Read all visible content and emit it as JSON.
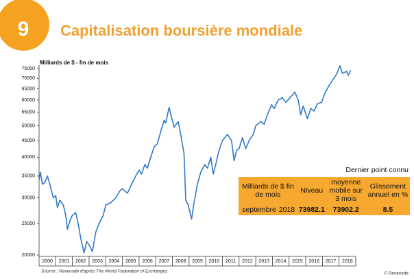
{
  "badge": "9",
  "chart_data": {
    "type": "line",
    "title": "Capitalisation boursière mondiale",
    "y_label": "Milliards de $ - fin de mois",
    "log_y": true,
    "color": "#2e78c8",
    "x": [
      2000.0,
      2000.08,
      2000.2,
      2000.35,
      2000.5,
      2000.65,
      2000.85,
      2001.0,
      2001.1,
      2001.25,
      2001.45,
      2001.6,
      2001.7,
      2001.85,
      2002.0,
      2002.2,
      2002.35,
      2002.5,
      2002.7,
      2002.85,
      2003.0,
      2003.2,
      2003.4,
      2003.6,
      2003.85,
      2004.0,
      2004.3,
      2004.6,
      2004.85,
      2005.0,
      2005.3,
      2005.55,
      2005.8,
      2006.0,
      2006.15,
      2006.35,
      2006.5,
      2006.7,
      2006.9,
      2007.1,
      2007.3,
      2007.5,
      2007.6,
      2007.8,
      2007.95,
      2008.1,
      2008.35,
      2008.5,
      2008.7,
      2008.8,
      2008.95,
      2009.15,
      2009.3,
      2009.5,
      2009.7,
      2009.95,
      2010.1,
      2010.3,
      2010.45,
      2010.6,
      2010.8,
      2011.0,
      2011.3,
      2011.55,
      2011.7,
      2011.85,
      2012.0,
      2012.2,
      2012.4,
      2012.6,
      2012.85,
      2013.0,
      2013.3,
      2013.5,
      2013.7,
      2013.95,
      2014.1,
      2014.35,
      2014.6,
      2014.8,
      2015.0,
      2015.35,
      2015.55,
      2015.7,
      2015.85,
      2016.1,
      2016.3,
      2016.5,
      2016.7,
      2016.95,
      2017.15,
      2017.4,
      2017.6,
      2017.85,
      2018.05,
      2018.2,
      2018.45,
      2018.55,
      2018.7
    ],
    "values": [
      34000,
      36000,
      33000,
      33500,
      35000,
      33000,
      30000,
      30500,
      28000,
      29500,
      28500,
      26500,
      24000,
      25500,
      26500,
      27000,
      25000,
      22500,
      20300,
      22000,
      21500,
      20500,
      23500,
      25000,
      26500,
      28500,
      29000,
      30000,
      31500,
      32000,
      31000,
      33000,
      35000,
      36500,
      35500,
      38000,
      37000,
      40000,
      43000,
      44000,
      48000,
      52000,
      51000,
      57000,
      53000,
      49500,
      51500,
      47000,
      41000,
      29500,
      28500,
      25800,
      29000,
      33000,
      36000,
      38000,
      37000,
      40000,
      35500,
      38000,
      42000,
      45000,
      47000,
      45000,
      39000,
      42000,
      42500,
      46000,
      42500,
      45000,
      47000,
      50000,
      51500,
      50500,
      54000,
      58000,
      56500,
      60000,
      61000,
      59000,
      60500,
      63500,
      60000,
      54000,
      57500,
      52500,
      56500,
      55500,
      58500,
      59000,
      63000,
      66500,
      69000,
      72000,
      76500,
      72500,
      73500,
      71500,
      74000
    ],
    "xlim": [
      2000,
      2019
    ],
    "xticks": [
      {
        "value": 2000.5,
        "label": "2000"
      },
      {
        "value": 2001.5,
        "label": "2001"
      },
      {
        "value": 2002.5,
        "label": "2002"
      },
      {
        "value": 2003.5,
        "label": "2003"
      },
      {
        "value": 2004.5,
        "label": "2004"
      },
      {
        "value": 2005.5,
        "label": "2005"
      },
      {
        "value": 2006.5,
        "label": "2006"
      },
      {
        "value": 2007.5,
        "label": "2007"
      },
      {
        "value": 2008.5,
        "label": "2008"
      },
      {
        "value": 2009.5,
        "label": "2009"
      },
      {
        "value": 2010.5,
        "label": "2010"
      },
      {
        "value": 2011.5,
        "label": "2011"
      },
      {
        "value": 2012.5,
        "label": "2012"
      },
      {
        "value": 2013.5,
        "label": "2013"
      },
      {
        "value": 2014.5,
        "label": "2014"
      },
      {
        "value": 2015.5,
        "label": "2015"
      },
      {
        "value": 2016.5,
        "label": "2016"
      },
      {
        "value": 2017.5,
        "label": "2017"
      },
      {
        "value": 2018.5,
        "label": "2018"
      }
    ],
    "ylim": [
      20000,
      75000
    ],
    "yticks": [
      20000,
      25000,
      30000,
      35000,
      40000,
      45000,
      50000,
      55000,
      60000,
      65000,
      70000,
      75000
    ]
  },
  "table": {
    "caption": "Dernier point connu",
    "headers": [
      "Milliards de $ fin de mois",
      "Niveau",
      "moyenne mobile sur 3 mois",
      "Glissement annuel en %"
    ],
    "rows": [
      [
        "septembre",
        2018,
        73982.1,
        73902.2,
        8.5
      ]
    ]
  },
  "source": "Source : Rexecode    d'après The World Federation of Exchanges",
  "copyright": "© Rexecode"
}
